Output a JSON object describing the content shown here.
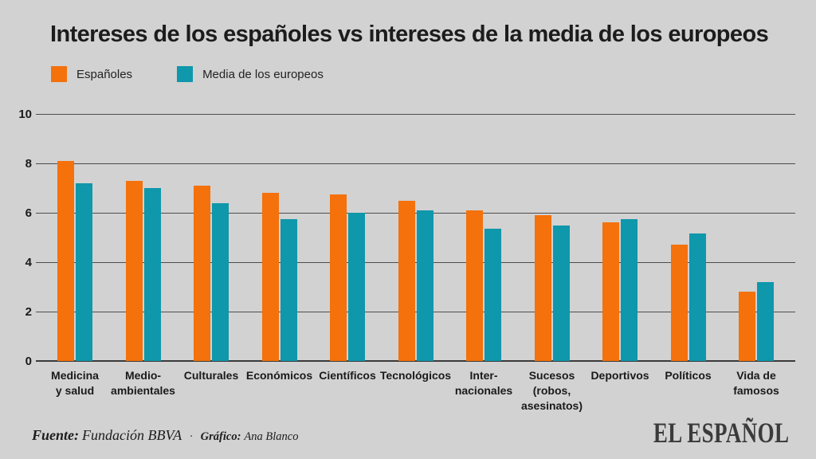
{
  "chart_data": {
    "type": "bar",
    "title": "Intereses de los españoles vs intereses de la media de los europeos",
    "categories": [
      "Medicina y salud",
      "Medio-ambientales",
      "Culturales",
      "Económicos",
      "Científicos",
      "Tecnológicos",
      "Inter-nacionales",
      "Sucesos (robos, asesinatos)",
      "Deportivos",
      "Políticos",
      "Vida de famosos"
    ],
    "category_label_lines": [
      [
        "Medicina",
        "y salud"
      ],
      [
        "Medio-",
        "ambientales"
      ],
      [
        "Culturales"
      ],
      [
        "Económicos"
      ],
      [
        "Científicos"
      ],
      [
        "Tecnológicos"
      ],
      [
        "Inter-",
        "nacionales"
      ],
      [
        "Sucesos",
        "(robos,",
        "asesinatos)"
      ],
      [
        "Deportivos"
      ],
      [
        "Políticos"
      ],
      [
        "Vida de",
        "famosos"
      ]
    ],
    "series": [
      {
        "name": "Españoles",
        "color": "#f4710c",
        "values": [
          8.1,
          7.3,
          7.1,
          6.8,
          6.75,
          6.5,
          6.1,
          5.9,
          5.6,
          4.7,
          2.8
        ]
      },
      {
        "name": "Media de los europeos",
        "color": "#0f97ab",
        "values": [
          7.2,
          7.0,
          6.4,
          5.75,
          6.0,
          6.1,
          5.35,
          5.5,
          5.75,
          5.15,
          3.2
        ]
      }
    ],
    "ylim": [
      0,
      10
    ],
    "yticks": [
      0,
      2,
      4,
      6,
      8,
      10
    ],
    "grid": true,
    "legend_position": "top-left"
  },
  "footer": {
    "fuente_label": "Fuente:",
    "fuente_value": "Fundación BBVA",
    "separator": "·",
    "grafico_label": "Gráfico:",
    "grafico_value": "Ana Blanco"
  },
  "branding": {
    "logo": "EL ESPAÑOL"
  },
  "colors": {
    "background": "#d2d2d2",
    "orange": "#f4710c",
    "teal": "#0f97ab",
    "grid": "#4d4d4d",
    "axis": "#3a3a3a",
    "text": "#1c1c1c"
  }
}
